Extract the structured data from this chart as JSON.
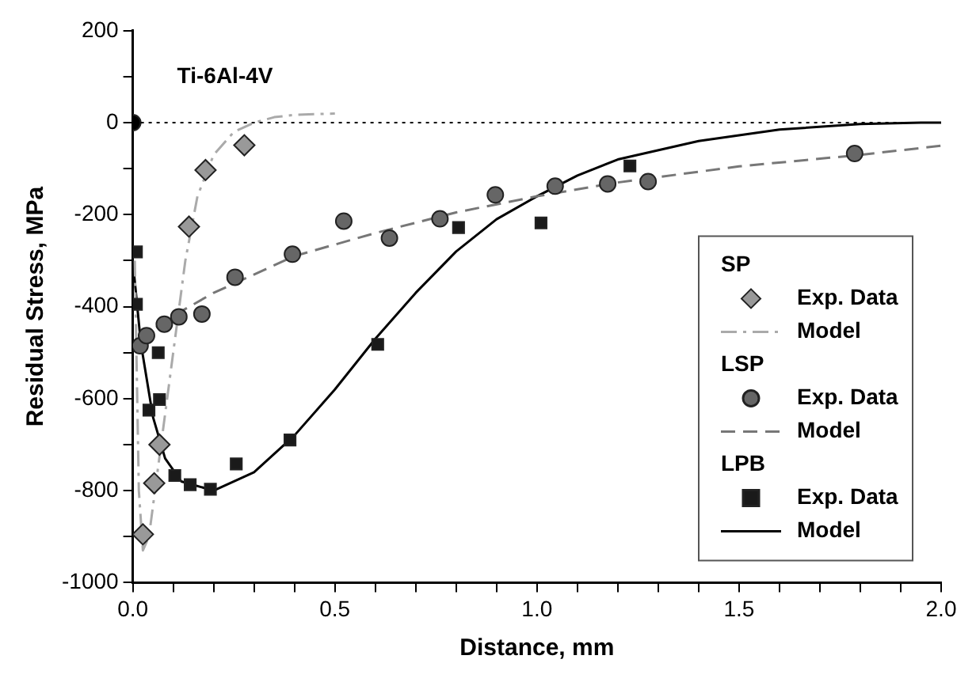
{
  "chart_data": {
    "type": "scatter",
    "xlabel": "Distance, mm",
    "ylabel": "Residual Stress, MPa",
    "annotations": [
      "Ti-6Al-4V",
      "SP",
      "LSP",
      "LPB"
    ],
    "xlim": [
      0,
      2.0
    ],
    "xticks": [
      {
        "value": 0,
        "label": "0.0"
      },
      {
        "value": 0.1,
        "label": null
      },
      {
        "value": 0.2,
        "label": null
      },
      {
        "value": 0.3,
        "label": null
      },
      {
        "value": 0.4,
        "label": null
      },
      {
        "value": 0.5,
        "label": "0.5"
      },
      {
        "value": 0.6,
        "label": null
      },
      {
        "value": 0.7,
        "label": null
      },
      {
        "value": 0.8,
        "label": null
      },
      {
        "value": 0.9,
        "label": null
      },
      {
        "value": 1.0,
        "label": "1.0"
      },
      {
        "value": 1.1,
        "label": null
      },
      {
        "value": 1.2,
        "label": null
      },
      {
        "value": 1.3,
        "label": null
      },
      {
        "value": 1.4,
        "label": null
      },
      {
        "value": 1.5,
        "label": "1.5"
      },
      {
        "value": 1.6,
        "label": null
      },
      {
        "value": 1.7,
        "label": null
      },
      {
        "value": 1.8,
        "label": null
      },
      {
        "value": 1.9,
        "label": null
      },
      {
        "value": 2.0,
        "label": "2.0"
      }
    ],
    "ylim": [
      -1000,
      200
    ],
    "yticks": [
      -1000,
      {
        "value": -900,
        "label": null
      },
      -800,
      {
        "value": -700,
        "label": null
      },
      -600,
      {
        "value": -500,
        "label": null
      },
      -400,
      {
        "value": -300,
        "label": null
      },
      -200,
      {
        "value": -100,
        "label": null
      },
      0,
      {
        "value": 100,
        "label": null
      },
      200
    ],
    "grid": false,
    "legend": "bottom right",
    "ref_lines": [
      {
        "axis": "y",
        "value": 0,
        "line_style": "dotted",
        "color": "#000000"
      }
    ],
    "series": [
      {
        "name": "Exp. Data",
        "type": "scatter",
        "marker": "diamond",
        "color": "#999999",
        "x": [
          0.025,
          0.053,
          0.066,
          0.139,
          0.18,
          0.276
        ],
        "values": [
          -895,
          -784,
          -700,
          -226,
          -103,
          -49
        ]
      },
      {
        "name": "Model",
        "type": "line",
        "marker": "none",
        "line_style": "dashdot",
        "color": "#aaaaaa",
        "x": [
          0.005,
          0.015,
          0.025,
          0.04,
          0.07,
          0.1,
          0.13,
          0.16,
          0.2,
          0.25,
          0.3,
          0.35,
          0.4,
          0.5
        ],
        "values": [
          -300,
          -800,
          -930,
          -900,
          -700,
          -500,
          -300,
          -160,
          -70,
          -20,
          0,
          12,
          17,
          20
        ]
      },
      {
        "name": "Exp. Data",
        "type": "scatter",
        "marker": "circle",
        "color": "#666666",
        "x": [
          0.018,
          0.034,
          0.078,
          0.114,
          0.171,
          0.253,
          0.395,
          0.522,
          0.635,
          0.76,
          0.897,
          1.045,
          1.175,
          1.275,
          1.786
        ],
        "values": [
          -485,
          -463,
          -438,
          -422,
          -416,
          -336,
          -286,
          -214,
          -251,
          -209,
          -157,
          -138,
          -133,
          -128,
          -67
        ]
      },
      {
        "name": "Model",
        "type": "line",
        "marker": "none",
        "line_style": "dashed",
        "color": "#777777",
        "x": [
          0.02,
          0.05,
          0.1,
          0.2,
          0.4,
          0.6,
          0.8,
          1.0,
          1.2,
          1.5,
          1.8,
          2.0
        ],
        "values": [
          -480,
          -450,
          -420,
          -370,
          -290,
          -240,
          -195,
          -160,
          -130,
          -95,
          -70,
          -50
        ]
      },
      {
        "name": "Exp. Data",
        "type": "scatter",
        "marker": "square",
        "color": "#1a1a1a",
        "x": [
          0.009,
          0.009,
          0.04,
          0.063,
          0.066,
          0.104,
          0.142,
          0.192,
          0.256,
          0.389,
          0.606,
          0.806,
          1.01,
          1.23
        ],
        "values": [
          -281,
          -395,
          -625,
          -500,
          -602,
          -767,
          -787,
          -797,
          -742,
          -690,
          -482,
          -228,
          -218,
          -94
        ]
      },
      {
        "name": "Model",
        "type": "line",
        "marker": "none",
        "line_style": "solid",
        "color": "#000000",
        "x": [
          0,
          0.02,
          0.05,
          0.08,
          0.12,
          0.2,
          0.3,
          0.4,
          0.5,
          0.6,
          0.7,
          0.8,
          0.9,
          1.0,
          1.1,
          1.2,
          1.4,
          1.6,
          1.8,
          1.95,
          2.0
        ],
        "values": [
          -300,
          -480,
          -640,
          -730,
          -780,
          -800,
          -760,
          -680,
          -580,
          -470,
          -370,
          -280,
          -210,
          -160,
          -115,
          -80,
          -40,
          -15,
          -3,
          0,
          0
        ]
      },
      {
        "type": "scatter",
        "marker": "circle",
        "color": "#000000",
        "x": [
          0
        ],
        "values": [
          0
        ]
      }
    ]
  }
}
